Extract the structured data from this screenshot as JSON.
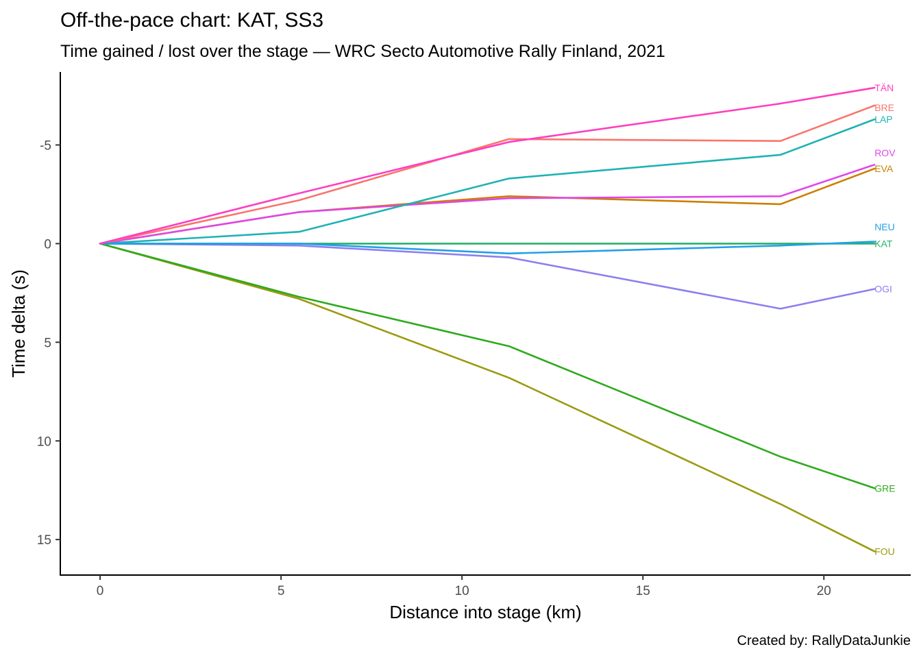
{
  "chart_data": {
    "type": "line",
    "title": "Off-the-pace chart: KAT, SS3",
    "subtitle": "Time gained / lost over the stage — WRC Secto Automotive Rally Finland, 2021",
    "xlabel": "Distance into stage (km)",
    "ylabel": "Time delta (s)",
    "caption": "Created by: RallyDataJunkie",
    "xlim": [
      -1.1,
      22.4
    ],
    "ylim": [
      16.8,
      -8.7
    ],
    "y_reversed": true,
    "grid": false,
    "legend": "none",
    "x_ticks": [
      {
        "value": 0,
        "label": "0"
      },
      {
        "value": 5,
        "label": "5"
      },
      {
        "value": 10,
        "label": "10"
      },
      {
        "value": 15,
        "label": "15"
      },
      {
        "value": 20,
        "label": "20"
      }
    ],
    "y_ticks": [
      {
        "value": -5,
        "label": "-5"
      },
      {
        "value": 0,
        "label": "0"
      },
      {
        "value": 5,
        "label": "5"
      },
      {
        "value": 10,
        "label": "10"
      },
      {
        "value": 15,
        "label": "15"
      }
    ],
    "x": [
      0,
      5.5,
      11.3,
      18.8,
      21.4
    ],
    "series": [
      {
        "name": "TÄN",
        "color": "#ff3fbf",
        "values": [
          0,
          -2.55,
          -5.15,
          -7.1,
          -7.9
        ]
      },
      {
        "name": "BRE",
        "color": "#f8766d",
        "values": [
          0,
          -2.2,
          -5.3,
          -5.2,
          -7.0
        ]
      },
      {
        "name": "LAP",
        "color": "#1fb2b4",
        "values": [
          0,
          -0.6,
          -3.3,
          -4.5,
          -6.3
        ]
      },
      {
        "name": "ROV",
        "color": "#e046e9",
        "values": [
          0,
          -1.6,
          -2.3,
          -2.4,
          -4.0
        ]
      },
      {
        "name": "EVA",
        "color": "#cc7f00",
        "values": [
          0,
          -1.6,
          -2.4,
          -2.0,
          -3.8
        ]
      },
      {
        "name": "NEU",
        "color": "#22a0e6",
        "values": [
          0,
          0.0,
          0.5,
          0.1,
          -0.1
        ]
      },
      {
        "name": "KAT",
        "color": "#27b06a",
        "values": [
          0,
          0,
          0,
          0,
          0
        ]
      },
      {
        "name": "OGI",
        "color": "#8c80f0",
        "values": [
          0,
          0.1,
          0.7,
          3.3,
          2.3
        ]
      },
      {
        "name": "GRE",
        "color": "#2eaa1e",
        "values": [
          0,
          2.7,
          5.2,
          10.8,
          12.4
        ]
      },
      {
        "name": "FOU",
        "color": "#9a9a10",
        "values": [
          0,
          2.8,
          6.8,
          13.2,
          15.6
        ]
      }
    ],
    "series_label_offsets": {
      "TÄN": 0,
      "BRE": -0.1,
      "LAP": 0,
      "ROV": 0.6,
      "EVA": 0,
      "NEU": 0.75,
      "KAT": 0,
      "OGI": 0,
      "GRE": 0,
      "FOU": 0
    }
  }
}
